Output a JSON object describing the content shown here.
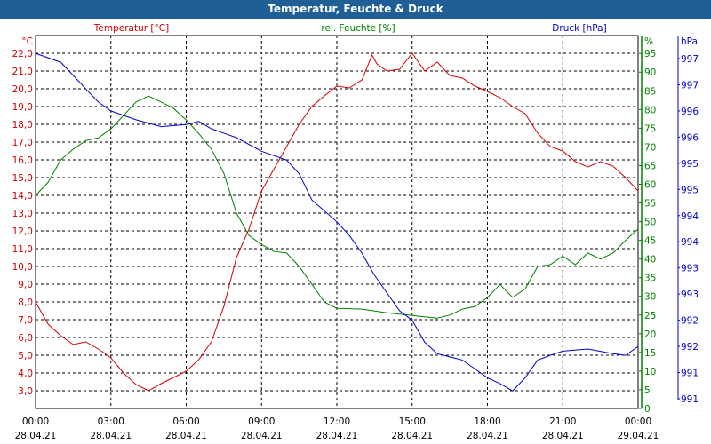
{
  "window": {
    "title": "Temperatur, Feuchte & Druck"
  },
  "chart_data": {
    "type": "line",
    "title": "Temperatur, Feuchte & Druck",
    "grid": true,
    "legend": [
      {
        "label": "Temperatur [°C]",
        "color": "#d00000"
      },
      {
        "label": "rel. Feuchte [%]",
        "color": "#008000"
      },
      {
        "label": "Druck [hPa]",
        "color": "#0000d0"
      }
    ],
    "x_ticks": [
      {
        "time": "00:00",
        "date": "28.04.21"
      },
      {
        "time": "03:00",
        "date": "28.04.21"
      },
      {
        "time": "06:00",
        "date": "28.04.21"
      },
      {
        "time": "09:00",
        "date": "28.04.21"
      },
      {
        "time": "12:00",
        "date": "28.04.21"
      },
      {
        "time": "15:00",
        "date": "28.04.21"
      },
      {
        "time": "18:00",
        "date": "28.04.21"
      },
      {
        "time": "21:00",
        "date": "28.04.21"
      },
      {
        "time": "00:00",
        "date": "29.04.21"
      }
    ],
    "xlim_hours": [
      0,
      24
    ],
    "axes": {
      "temperature": {
        "unit": "°C",
        "ylim": [
          2,
          23
        ],
        "ticks": [
          "22,0",
          "21,0",
          "20,0",
          "19,0",
          "18,0",
          "17,0",
          "16,0",
          "15,0",
          "14,0",
          "13,0",
          "12,0",
          "11,0",
          "10,0",
          "9,0",
          "8,0",
          "7,0",
          "6,0",
          "5,0",
          "4,0",
          "3,0"
        ]
      },
      "humidity": {
        "unit": "%",
        "ylim": [
          0,
          99.8
        ],
        "ticks": [
          "95",
          "90",
          "85",
          "80",
          "75",
          "70",
          "65",
          "60",
          "55",
          "50",
          "45",
          "40",
          "35",
          "30",
          "25",
          "20",
          "15",
          "10",
          "5",
          "0"
        ]
      },
      "pressure": {
        "unit": "hPa",
        "ticks": [
          "997",
          "997",
          "996",
          "996",
          "995",
          "995",
          "994",
          "994",
          "993",
          "993",
          "992",
          "992",
          "991",
          "991"
        ],
        "tick_values": [
          997,
          996.5,
          996,
          995.5,
          995,
          994.5,
          994,
          993.5,
          993,
          992.5,
          992,
          991.5,
          991,
          990.5
        ]
      }
    },
    "series": [
      {
        "name": "Temperatur [°C]",
        "axis": "temperature",
        "color": "#d00000",
        "x": [
          0,
          0.5,
          1,
          1.5,
          2,
          2.5,
          3,
          3.5,
          4,
          4.5,
          5,
          5.5,
          6,
          6.5,
          7,
          7.5,
          8,
          8.5,
          9,
          9.5,
          10,
          10.5,
          11,
          11.5,
          12,
          12.5,
          13,
          13.4,
          13.6,
          14,
          14.5,
          15,
          15.5,
          16,
          16.5,
          17,
          17.5,
          18,
          18.5,
          19,
          19.5,
          20,
          20.5,
          21,
          21.5,
          22,
          22.5,
          23,
          23.5,
          24
        ],
        "values": [
          8.0,
          6.75,
          6.1,
          5.6,
          5.75,
          5.35,
          4.85,
          4.0,
          3.35,
          3.0,
          3.4,
          3.75,
          4.1,
          4.75,
          5.75,
          7.75,
          10.5,
          12.1,
          14.25,
          15.5,
          16.75,
          18.0,
          19.0,
          19.6,
          20.15,
          20.05,
          20.5,
          21.9,
          21.4,
          21.0,
          21.1,
          22.0,
          21.0,
          21.5,
          20.75,
          20.6,
          20.15,
          19.85,
          19.5,
          19.0,
          18.6,
          17.5,
          16.75,
          16.5,
          15.9,
          15.6,
          15.9,
          15.65,
          15.0,
          14.25
        ]
      },
      {
        "name": "rel. Feuchte [%]",
        "axis": "humidity",
        "color": "#008000",
        "x": [
          0,
          0.5,
          1,
          1.5,
          2,
          2.5,
          3,
          3.5,
          4,
          4.5,
          5,
          5.5,
          6,
          6.5,
          7,
          7.5,
          8,
          8.5,
          9,
          9.5,
          10,
          10.5,
          11,
          11.5,
          12,
          13,
          14,
          15,
          16,
          16.5,
          17,
          17.5,
          18,
          18.5,
          19,
          19.5,
          20,
          20.5,
          21,
          21.5,
          22,
          22.5,
          23,
          23.5,
          24
        ],
        "values": [
          57,
          60.5,
          66.5,
          69.4,
          71.7,
          72.4,
          74.8,
          78.4,
          82,
          83.6,
          82,
          80.3,
          77.2,
          73.6,
          69.4,
          62.9,
          52.3,
          46.3,
          43.9,
          42,
          41.6,
          38,
          33.3,
          28.5,
          26.8,
          26.6,
          25.6,
          24.9,
          24.2,
          25,
          26.6,
          27.3,
          29.7,
          33.2,
          29.7,
          32,
          38,
          38.5,
          40.8,
          38.5,
          41.6,
          40,
          41.6,
          45,
          48
        ]
      },
      {
        "name": "Druck [hPa]",
        "axis": "pressure",
        "color": "#0000d0",
        "x": [
          0,
          1,
          1.5,
          2,
          2.5,
          3,
          4,
          5,
          6,
          6.5,
          7,
          8,
          9,
          10,
          10.5,
          11,
          12,
          12.5,
          13,
          13.5,
          14,
          14.5,
          15,
          15.5,
          16,
          17,
          17.5,
          18,
          18.5,
          19,
          19.5,
          20,
          20.5,
          21,
          22,
          23,
          23.5,
          24
        ],
        "values": [
          997.1,
          996.93,
          996.68,
          996.42,
          996.17,
          996.0,
          995.83,
          995.7,
          995.74,
          995.8,
          995.66,
          995.49,
          995.23,
          995.06,
          994.8,
          994.3,
          993.88,
          993.62,
          993.28,
          992.86,
          992.52,
          992.18,
          992.0,
          991.58,
          991.36,
          991.24,
          991.07,
          990.9,
          990.79,
          990.65,
          990.9,
          991.24,
          991.33,
          991.41,
          991.45,
          991.36,
          991.33,
          991.5
        ]
      }
    ]
  }
}
